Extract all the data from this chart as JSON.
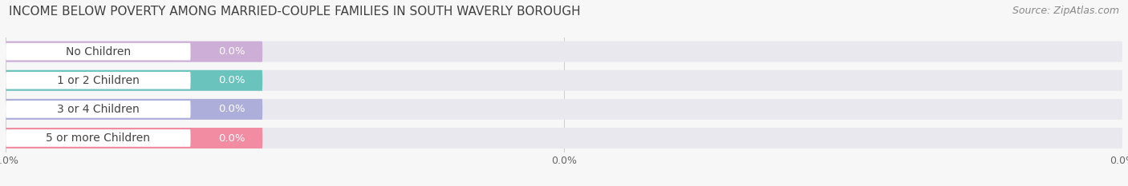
{
  "title": "INCOME BELOW POVERTY AMONG MARRIED-COUPLE FAMILIES IN SOUTH WAVERLY BOROUGH",
  "source": "Source: ZipAtlas.com",
  "categories": [
    "No Children",
    "1 or 2 Children",
    "3 or 4 Children",
    "5 or more Children"
  ],
  "values": [
    0.0,
    0.0,
    0.0,
    0.0
  ],
  "bar_colors": [
    "#c9a8d4",
    "#5dbfb8",
    "#a8a8d8",
    "#f4829a"
  ],
  "bar_bg_color": "#e8e8ee",
  "background_color": "#f7f7f7",
  "title_fontsize": 11,
  "source_fontsize": 9,
  "label_fontsize": 10,
  "value_fontsize": 9.5,
  "figure_width": 14.06,
  "figure_height": 2.33
}
